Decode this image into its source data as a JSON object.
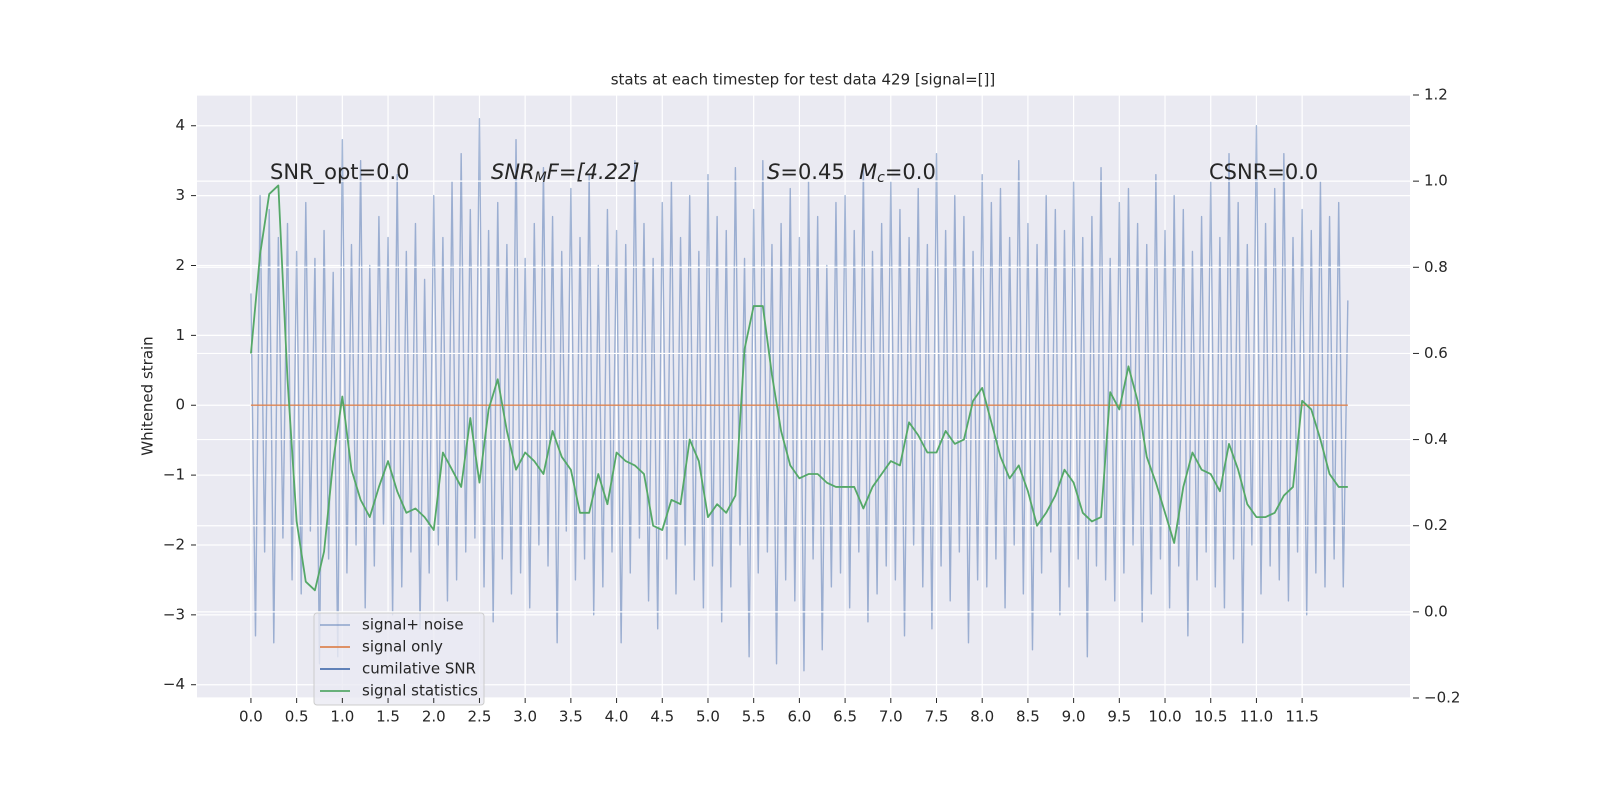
{
  "chart_data": {
    "type": "line",
    "title": "stats at each timestep for test data 429 [signal=[]]",
    "ylabel": "Whitened strain",
    "annotations": {
      "snr_opt": "SNR_opt=0.0",
      "snr_mf": [
        "SNR",
        "M",
        "F=[4.22]"
      ],
      "s": [
        "S",
        "=0.45"
      ],
      "mc": [
        "M",
        "c",
        "=0.0"
      ],
      "csnr": "CSNR=0.0"
    },
    "xlim": [
      -0.59,
      12.68
    ],
    "ylim": [
      -4.19,
      4.44
    ],
    "y2lim": [
      -0.2,
      1.2
    ],
    "xticks": [
      {
        "value": 0,
        "label": "0.0"
      },
      0.5,
      {
        "value": 1,
        "label": "1.0"
      },
      1.5,
      {
        "value": 2,
        "label": "2.0"
      },
      2.5,
      {
        "value": 3,
        "label": "3.0"
      },
      3.5,
      {
        "value": 4,
        "label": "4.0"
      },
      4.5,
      {
        "value": 5,
        "label": "5.0"
      },
      5.5,
      {
        "value": 6,
        "label": "6.0"
      },
      6.5,
      {
        "value": 7,
        "label": "7.0"
      },
      7.5,
      {
        "value": 8,
        "label": "8.0"
      },
      8.5,
      {
        "value": 9,
        "label": "9.0"
      },
      9.5,
      {
        "value": 10,
        "label": "10.0"
      },
      10.5,
      {
        "value": 11,
        "label": "11.0"
      },
      11.5
    ],
    "yticks": [
      {
        "value": -4,
        "label": "−4"
      },
      {
        "value": -3,
        "label": "−3"
      },
      {
        "value": -2,
        "label": "−2"
      },
      {
        "value": -1,
        "label": "−1"
      },
      0,
      1,
      2,
      3,
      4
    ],
    "y2ticks": [
      {
        "value": -0.2,
        "label": "−0.2"
      },
      {
        "value": 0,
        "label": "0.0"
      },
      0.2,
      0.4,
      0.6,
      0.8,
      {
        "value": 1,
        "label": "1.0"
      },
      1.2
    ],
    "grid": true,
    "legend": "lower left",
    "series": [
      {
        "name": "signal+ noise",
        "color": "#4c72b0",
        "opacity": 0.5,
        "x": [
          0,
          0.05,
          0.1,
          0.15,
          0.2,
          0.25,
          0.3,
          0.35,
          0.4,
          0.45,
          0.5,
          0.55,
          0.6,
          0.65,
          0.7,
          0.75,
          0.8,
          0.85,
          0.9,
          0.95,
          1,
          1.05,
          1.1,
          1.15,
          1.2,
          1.25,
          1.3,
          1.35,
          1.4,
          1.45,
          1.5,
          1.55,
          1.6,
          1.65,
          1.7,
          1.75,
          1.8,
          1.85,
          1.9,
          1.95,
          2,
          2.05,
          2.1,
          2.15,
          2.2,
          2.25,
          2.3,
          2.35,
          2.4,
          2.45,
          2.5,
          2.55,
          2.6,
          2.65,
          2.7,
          2.75,
          2.8,
          2.85,
          2.9,
          2.95,
          3,
          3.05,
          3.1,
          3.15,
          3.2,
          3.25,
          3.3,
          3.35,
          3.4,
          3.45,
          3.5,
          3.55,
          3.6,
          3.65,
          3.7,
          3.75,
          3.8,
          3.85,
          3.9,
          3.95,
          4,
          4.05,
          4.1,
          4.15,
          4.2,
          4.25,
          4.3,
          4.35,
          4.4,
          4.45,
          4.5,
          4.55,
          4.6,
          4.65,
          4.7,
          4.75,
          4.8,
          4.85,
          4.9,
          4.95,
          5,
          5.05,
          5.1,
          5.15,
          5.2,
          5.25,
          5.3,
          5.35,
          5.4,
          5.45,
          5.5,
          5.55,
          5.6,
          5.65,
          5.7,
          5.75,
          5.8,
          5.85,
          5.9,
          5.95,
          6,
          6.05,
          6.1,
          6.15,
          6.2,
          6.25,
          6.3,
          6.35,
          6.4,
          6.45,
          6.5,
          6.55,
          6.6,
          6.65,
          6.7,
          6.75,
          6.8,
          6.85,
          6.9,
          6.95,
          7,
          7.05,
          7.1,
          7.15,
          7.2,
          7.25,
          7.3,
          7.35,
          7.4,
          7.45,
          7.5,
          7.55,
          7.6,
          7.65,
          7.7,
          7.75,
          7.8,
          7.85,
          7.9,
          7.95,
          8,
          8.05,
          8.1,
          8.15,
          8.2,
          8.25,
          8.3,
          8.35,
          8.4,
          8.45,
          8.5,
          8.55,
          8.6,
          8.65,
          8.7,
          8.75,
          8.8,
          8.85,
          8.9,
          8.95,
          9,
          9.05,
          9.1,
          9.15,
          9.2,
          9.25,
          9.3,
          9.35,
          9.4,
          9.45,
          9.5,
          9.55,
          9.6,
          9.65,
          9.7,
          9.75,
          9.8,
          9.85,
          9.9,
          9.95,
          10,
          10.05,
          10.1,
          10.15,
          10.2,
          10.25,
          10.3,
          10.35,
          10.4,
          10.45,
          10.5,
          10.55,
          10.6,
          10.65,
          10.7,
          10.75,
          10.8,
          10.85,
          10.9,
          10.95,
          11,
          11.05,
          11.1,
          11.15,
          11.2,
          11.25,
          11.3,
          11.35,
          11.4,
          11.45,
          11.5,
          11.55,
          11.6,
          11.65,
          11.7,
          11.75,
          11.8,
          11.85,
          11.9,
          11.95,
          12
        ],
        "values": [
          1.6,
          -3.3,
          3.0,
          -2.1,
          2.8,
          -3.4,
          2.4,
          -1.9,
          2.6,
          -2.5,
          2.2,
          -2.7,
          2.9,
          -1.8,
          2.1,
          -3.7,
          2.5,
          -2.2,
          1.9,
          -3.6,
          3.8,
          -2.4,
          2.3,
          -2.0,
          3.5,
          -2.9,
          2.0,
          -2.3,
          2.7,
          -1.7,
          2.4,
          -3.0,
          3.3,
          -2.6,
          2.2,
          -2.1,
          2.6,
          -3.2,
          1.8,
          -2.4,
          3.0,
          -2.0,
          2.4,
          -2.8,
          3.2,
          -2.5,
          3.6,
          -2.1,
          2.8,
          -1.9,
          4.1,
          -2.6,
          2.5,
          -3.1,
          2.9,
          -2.2,
          2.3,
          -2.7,
          3.8,
          -2.4,
          2.1,
          -2.9,
          2.6,
          -2.0,
          3.4,
          -2.3,
          2.7,
          -3.4,
          2.2,
          -1.8,
          3.1,
          -2.5,
          2.4,
          -2.2,
          3.3,
          -3.0,
          2.0,
          -2.6,
          2.8,
          -2.1,
          2.5,
          -3.4,
          2.3,
          -2.4,
          3.5,
          -1.9,
          2.6,
          -2.8,
          2.1,
          -3.2,
          2.9,
          -2.2,
          3.2,
          -2.7,
          2.4,
          -2.0,
          3.0,
          -2.5,
          2.2,
          -2.9,
          3.3,
          -2.3,
          2.7,
          -3.1,
          2.5,
          -2.6,
          3.4,
          -2.0,
          2.1,
          -3.6,
          2.8,
          -2.4,
          3.5,
          -2.1,
          2.3,
          -3.7,
          2.6,
          -2.5,
          3.1,
          -2.8,
          2.4,
          -3.8,
          3.2,
          -2.2,
          2.7,
          -3.5,
          2.0,
          -2.6,
          2.9,
          -2.4,
          3.0,
          -2.9,
          2.5,
          -2.1,
          3.4,
          -3.1,
          2.2,
          -2.7,
          2.6,
          -2.3,
          3.2,
          -2.5,
          2.8,
          -3.3,
          2.4,
          -2.0,
          3.1,
          -2.6,
          2.3,
          -3.2,
          3.6,
          -2.3,
          2.5,
          -2.8,
          3.0,
          -2.1,
          2.7,
          -3.4,
          2.2,
          -2.5,
          3.3,
          -2.6,
          2.9,
          -2.2,
          3.1,
          -2.9,
          2.4,
          -2.0,
          3.5,
          -2.7,
          2.6,
          -3.5,
          2.3,
          -2.4,
          3.0,
          -2.1,
          2.8,
          -3.0,
          2.5,
          -2.6,
          3.2,
          -2.2,
          2.4,
          -3.6,
          2.7,
          -2.3,
          3.4,
          -2.5,
          2.1,
          -2.8,
          2.9,
          -2.4,
          3.1,
          -2.0,
          2.6,
          -3.1,
          2.3,
          -2.7,
          3.3,
          -2.2,
          2.5,
          -2.9,
          3.0,
          -2.3,
          2.8,
          -3.3,
          2.2,
          -2.5,
          2.7,
          -2.1,
          3.2,
          -2.6,
          2.4,
          -2.9,
          3.6,
          -2.2,
          2.9,
          -3.4,
          2.3,
          -2.0,
          4.0,
          -2.7,
          2.6,
          -2.3,
          3.1,
          -2.5,
          3.6,
          -2.8,
          2.4,
          -2.1,
          2.8,
          -3.0,
          2.5,
          -2.4,
          3.2,
          -2.6,
          2.7,
          -2.2,
          2.9,
          -2.6,
          1.5
        ]
      },
      {
        "name": "signal only",
        "color": "#dd8452",
        "opacity": 1,
        "x": [
          0,
          12
        ],
        "values": [
          0,
          0
        ]
      },
      {
        "name": "cumilative SNR",
        "color": "#4c72b0",
        "opacity": 1,
        "axis": "y2",
        "x": [],
        "values": []
      },
      {
        "name": "signal statistics",
        "color": "#55a868",
        "opacity": 1,
        "axis": "y2",
        "x": [
          0,
          0.1,
          0.2,
          0.3,
          0.4,
          0.5,
          0.6,
          0.7,
          0.8,
          0.9,
          1,
          1.1,
          1.2,
          1.3,
          1.4,
          1.5,
          1.6,
          1.7,
          1.8,
          1.9,
          2,
          2.1,
          2.2,
          2.3,
          2.4,
          2.5,
          2.6,
          2.7,
          2.8,
          2.9,
          3,
          3.1,
          3.2,
          3.3,
          3.4,
          3.5,
          3.6,
          3.7,
          3.8,
          3.9,
          4,
          4.1,
          4.2,
          4.3,
          4.4,
          4.5,
          4.6,
          4.7,
          4.8,
          4.9,
          5,
          5.1,
          5.2,
          5.3,
          5.4,
          5.5,
          5.6,
          5.7,
          5.8,
          5.9,
          6,
          6.1,
          6.2,
          6.3,
          6.4,
          6.5,
          6.6,
          6.7,
          6.8,
          6.9,
          7,
          7.1,
          7.2,
          7.3,
          7.4,
          7.5,
          7.6,
          7.7,
          7.8,
          7.9,
          8,
          8.1,
          8.2,
          8.3,
          8.4,
          8.5,
          8.6,
          8.7,
          8.8,
          8.9,
          9,
          9.1,
          9.2,
          9.3,
          9.4,
          9.5,
          9.6,
          9.7,
          9.8,
          9.9,
          10,
          10.1,
          10.2,
          10.3,
          10.4,
          10.5,
          10.6,
          10.7,
          10.8,
          10.9,
          11,
          11.1,
          11.2,
          11.3,
          11.4,
          11.5,
          11.6,
          11.7,
          11.8,
          11.9,
          12
        ],
        "values": [
          0.6,
          0.83,
          0.97,
          0.99,
          0.54,
          0.21,
          0.07,
          0.05,
          0.14,
          0.35,
          0.5,
          0.33,
          0.26,
          0.22,
          0.29,
          0.35,
          0.28,
          0.23,
          0.24,
          0.22,
          0.19,
          0.37,
          0.33,
          0.29,
          0.45,
          0.3,
          0.47,
          0.54,
          0.42,
          0.33,
          0.37,
          0.35,
          0.32,
          0.42,
          0.36,
          0.33,
          0.23,
          0.23,
          0.32,
          0.25,
          0.37,
          0.35,
          0.34,
          0.32,
          0.2,
          0.19,
          0.26,
          0.25,
          0.4,
          0.35,
          0.22,
          0.25,
          0.23,
          0.27,
          0.61,
          0.71,
          0.71,
          0.55,
          0.42,
          0.34,
          0.31,
          0.32,
          0.32,
          0.3,
          0.29,
          0.29,
          0.29,
          0.24,
          0.29,
          0.32,
          0.35,
          0.34,
          0.44,
          0.41,
          0.37,
          0.37,
          0.42,
          0.39,
          0.4,
          0.49,
          0.52,
          0.44,
          0.36,
          0.31,
          0.34,
          0.28,
          0.2,
          0.23,
          0.27,
          0.33,
          0.3,
          0.23,
          0.21,
          0.22,
          0.51,
          0.47,
          0.57,
          0.49,
          0.36,
          0.3,
          0.23,
          0.16,
          0.29,
          0.37,
          0.33,
          0.32,
          0.28,
          0.39,
          0.33,
          0.25,
          0.22,
          0.22,
          0.23,
          0.27,
          0.29,
          0.49,
          0.47,
          0.4,
          0.32,
          0.29,
          0.29
        ]
      }
    ]
  }
}
